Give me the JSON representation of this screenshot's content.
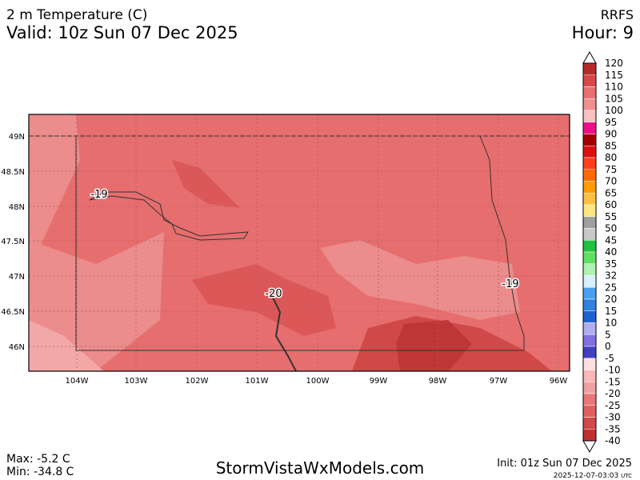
{
  "header": {
    "title": "2 m Temperature (C)",
    "valid": "Valid: 10z Sun 07 Dec 2025",
    "model": "RRFS",
    "hour": "Hour: 9"
  },
  "map": {
    "lat_labels": [
      "49N",
      "48.5N",
      "48N",
      "47.5N",
      "47N",
      "46.5N",
      "46N"
    ],
    "lon_labels": [
      "104W",
      "103W",
      "102W",
      "101W",
      "100W",
      "99W",
      "98W",
      "97W",
      "96W"
    ],
    "contour_labels": [
      "-19",
      "-20",
      "-19"
    ]
  },
  "colorbar": {
    "labels": [
      120,
      115,
      110,
      105,
      100,
      95,
      90,
      85,
      80,
      75,
      70,
      65,
      60,
      55,
      50,
      45,
      40,
      35,
      32,
      25,
      20,
      15,
      10,
      5,
      0,
      -5,
      -10,
      -15,
      -20,
      -25,
      -30,
      -35,
      -40
    ],
    "colors": [
      "#b52b2b",
      "#d94848",
      "#e87070",
      "#f09090",
      "#f8c0c0",
      "#e8108a",
      "#a00000",
      "#dd1010",
      "#ff3c1e",
      "#ff6a00",
      "#ff9a00",
      "#ffc040",
      "#ffe680",
      "#a0a0a0",
      "#c8c8c8",
      "#20c040",
      "#60e060",
      "#b0f0b0",
      "#d8f0ff",
      "#4aa0f0",
      "#3080e0",
      "#2060d0",
      "#b0b0f0",
      "#8070e0",
      "#4040c0",
      "#ffe0e0",
      "#f8b8b8",
      "#f0a0a0",
      "#e87878",
      "#e06060",
      "#d04848",
      "#c03030"
    ]
  },
  "footer": {
    "max": "Max: -5.2 C",
    "min": "Min: -34.8 C",
    "site": "StormVistaWxModels.com",
    "init": "Init: 01z Sun 07 Dec 2025",
    "timestamp": "2025-12-07-03:03",
    "timestamp_unit": "UTC"
  }
}
